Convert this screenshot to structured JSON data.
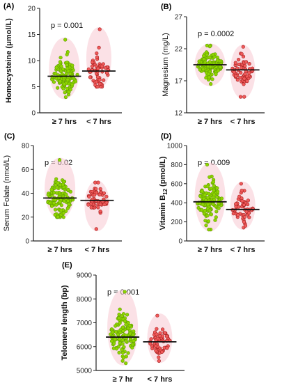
{
  "colors": {
    "green_fill": "#8fd400",
    "green_stroke": "#5e9c00",
    "red_fill": "#f05a5a",
    "red_stroke": "#a01c1c",
    "cloud": "#f7c8d2",
    "axis": "#222222",
    "median": "#111111"
  },
  "chart_data": [
    {
      "panel": "(A)",
      "type": "scatter",
      "subtype": "dot-plot",
      "ylabel": "Homocysteine (μmol/L)",
      "yticks": [
        0,
        5,
        10,
        15,
        20
      ],
      "ylim": [
        0,
        20
      ],
      "categories": [
        "≥ 7 hrs",
        "< 7 hrs"
      ],
      "annotation": "p = 0.001",
      "series": [
        {
          "median": 7.0,
          "min": 3.0,
          "max": 14.0,
          "n": 120
        },
        {
          "median": 8.0,
          "min": 5.0,
          "max": 16.0,
          "n": 60
        }
      ]
    },
    {
      "panel": "(B)",
      "type": "scatter",
      "subtype": "dot-plot",
      "ylabel": "Magnesium (mg/L)",
      "yticks": [
        12,
        17,
        22,
        27
      ],
      "ylim": [
        12,
        27
      ],
      "categories": [
        "≥ 7 hrs",
        "< 7 hrs"
      ],
      "annotation": "p = 0.0002",
      "series": [
        {
          "median": 19.5,
          "min": 16.5,
          "max": 22.5,
          "n": 120
        },
        {
          "median": 18.7,
          "min": 14.5,
          "max": 22.3,
          "n": 60
        }
      ]
    },
    {
      "panel": "(C)",
      "type": "scatter",
      "subtype": "dot-plot",
      "ylabel": "Serum Folate (nmol/L)",
      "yticks": [
        0,
        20,
        40,
        60,
        80
      ],
      "ylim": [
        0,
        80
      ],
      "categories": [
        "≥ 7 hrs",
        "< 7 hrs"
      ],
      "annotation": "p = 0.02",
      "series": [
        {
          "median": 36,
          "min": 20,
          "max": 68,
          "n": 120
        },
        {
          "median": 34,
          "min": 10,
          "max": 49,
          "n": 60
        }
      ]
    },
    {
      "panel": "(D)",
      "type": "scatter",
      "subtype": "dot-plot",
      "ylabel_prefix": "Vitamin B",
      "ylabel_sub": "12",
      "ylabel_suffix": "(pmol/L)",
      "yticks": [
        0,
        200,
        400,
        600,
        800,
        1000
      ],
      "ylim": [
        0,
        1000
      ],
      "categories": [
        "≥ 7 hrs",
        "< 7 hrs"
      ],
      "annotation": "p = 0.009",
      "series": [
        {
          "median": 410,
          "min": 120,
          "max": 800,
          "n": 120
        },
        {
          "median": 330,
          "min": 140,
          "max": 600,
          "n": 60
        }
      ]
    },
    {
      "panel": "(E)",
      "type": "scatter",
      "subtype": "dot-plot",
      "ylabel": "Telomere length (bp)",
      "yticks": [
        5000,
        6000,
        7000,
        8000,
        9000
      ],
      "ylim": [
        5000,
        9000
      ],
      "categories": [
        "≥ 7 hr",
        "< 7 hrs"
      ],
      "annotation": "p = 0.001",
      "series": [
        {
          "median": 6400,
          "min": 5300,
          "max": 8300,
          "n": 120
        },
        {
          "median": 6200,
          "min": 5400,
          "max": 7300,
          "n": 60
        }
      ]
    }
  ]
}
